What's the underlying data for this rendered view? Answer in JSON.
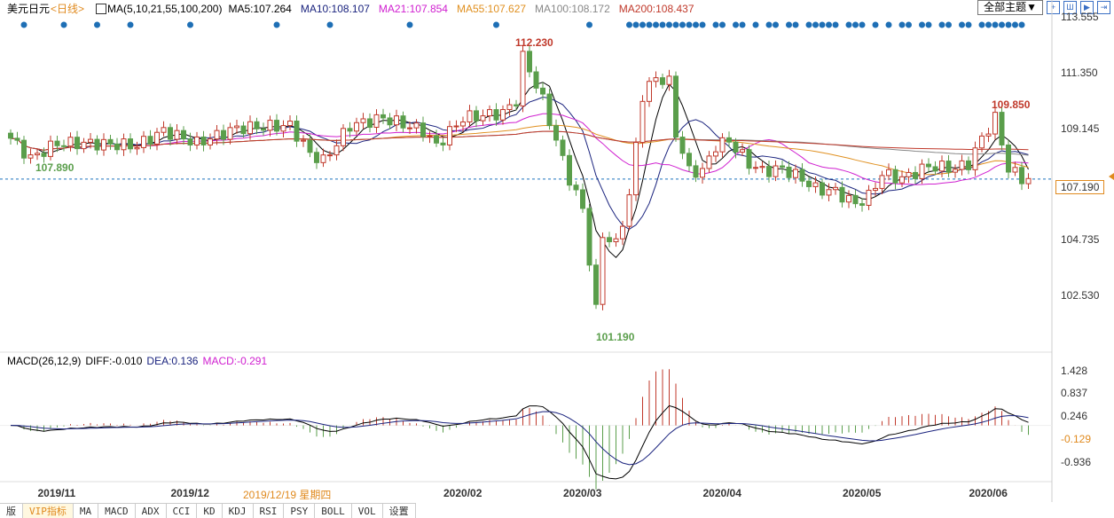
{
  "header": {
    "symbol": "美元日元",
    "period": "<日线>",
    "ma_label": "MA(5,10,21,55,100,200)",
    "ma": [
      {
        "t": "MA5:107.264",
        "c": "#000000"
      },
      {
        "t": "MA10:108.107",
        "c": "#1a237e"
      },
      {
        "t": "MA21:107.854",
        "c": "#d020d0"
      },
      {
        "t": "MA55:107.627",
        "c": "#e09020"
      },
      {
        "t": "MA100:108.172",
        "c": "#888888"
      },
      {
        "t": "MA200:108.437",
        "c": "#c0392b"
      }
    ]
  },
  "toolbar": {
    "theme": "全部主题▼",
    "buttons": [
      "+",
      "Ш",
      "▶",
      "⇥"
    ]
  },
  "price_axis": [
    "113.555",
    "111.350",
    "109.145",
    "104.735",
    "102.530"
  ],
  "current_price": "107.190",
  "annotations": {
    "high": "112.230",
    "low": "101.190",
    "high2": "109.850",
    "start": "107.890"
  },
  "macd": {
    "label": "MACD(26,12,9)",
    "diff": "DIFF:-0.010",
    "dea": "DEA:0.136",
    "macd": "MACD:-0.291",
    "axis": [
      "1.428",
      "0.837",
      "0.246",
      "-0.129",
      "-0.936"
    ]
  },
  "x_axis": {
    "labels": [
      {
        "t": "2019/11",
        "i": 7
      },
      {
        "t": "2019/12",
        "i": 27
      },
      {
        "t": "2020/02",
        "i": 68
      },
      {
        "t": "2020/03",
        "i": 86
      },
      {
        "t": "2020/04",
        "i": 107
      },
      {
        "t": "2020/05",
        "i": 128
      },
      {
        "t": "2020/06",
        "i": 147
      }
    ],
    "cursor_date": "2019/12/19 星期四"
  },
  "tabs": [
    "版",
    "VIP指标",
    "MA",
    "MACD",
    "ADX",
    "CCI",
    "KD",
    "KDJ",
    "RSI",
    "PSY",
    "BOLL",
    "VOL",
    "设置"
  ],
  "chart_data": {
    "type": "candlestick",
    "ylim": [
      100.6,
      113.9
    ],
    "close_keypoints": [
      [
        0,
        108.8
      ],
      [
        3,
        108.0
      ],
      [
        7,
        108.6
      ],
      [
        12,
        108.6
      ],
      [
        19,
        108.5
      ],
      [
        23,
        109.1
      ],
      [
        28,
        108.6
      ],
      [
        34,
        109.2
      ],
      [
        42,
        109.3
      ],
      [
        45,
        108.2
      ],
      [
        47,
        107.9
      ],
      [
        51,
        109.3
      ],
      [
        56,
        109.6
      ],
      [
        62,
        109.1
      ],
      [
        64,
        108.5
      ],
      [
        68,
        109.6
      ],
      [
        74,
        109.8
      ],
      [
        76,
        110.3
      ],
      [
        77,
        112.0
      ],
      [
        78,
        111.5
      ],
      [
        80,
        110.3
      ],
      [
        82,
        108.7
      ],
      [
        84,
        107.2
      ],
      [
        86,
        106.0
      ],
      [
        88,
        102.0
      ],
      [
        89,
        105.0
      ],
      [
        91,
        104.6
      ],
      [
        93,
        106.5
      ],
      [
        95,
        110.5
      ],
      [
        97,
        111.2
      ],
      [
        99,
        111.0
      ],
      [
        100,
        109.0
      ],
      [
        102,
        107.5
      ],
      [
        104,
        107.5
      ],
      [
        106,
        108.5
      ],
      [
        108,
        108.7
      ],
      [
        111,
        107.8
      ],
      [
        113,
        107.5
      ],
      [
        116,
        107.6
      ],
      [
        119,
        107.2
      ],
      [
        121,
        106.8
      ],
      [
        124,
        106.7
      ],
      [
        127,
        106.2
      ],
      [
        129,
        106.5
      ],
      [
        131,
        107.4
      ],
      [
        134,
        107.2
      ],
      [
        138,
        107.7
      ],
      [
        142,
        107.6
      ],
      [
        144,
        107.8
      ],
      [
        146,
        108.8
      ],
      [
        148,
        109.6
      ],
      [
        149,
        108.6
      ],
      [
        150,
        107.6
      ],
      [
        152,
        107.2
      ],
      [
        153,
        107.2
      ]
    ],
    "signal_dots": [
      2,
      8,
      13,
      18,
      27,
      40,
      48,
      60,
      73,
      87,
      93,
      94,
      95,
      96,
      97,
      98,
      99,
      100,
      101,
      102,
      103,
      104,
      106,
      107,
      109,
      110,
      112,
      114,
      115,
      117,
      118,
      120,
      121,
      122,
      123,
      124,
      126,
      127,
      128,
      130,
      132,
      134,
      135,
      137,
      138,
      140,
      141,
      143,
      144,
      146,
      147,
      148,
      149,
      150,
      151,
      152
    ]
  }
}
